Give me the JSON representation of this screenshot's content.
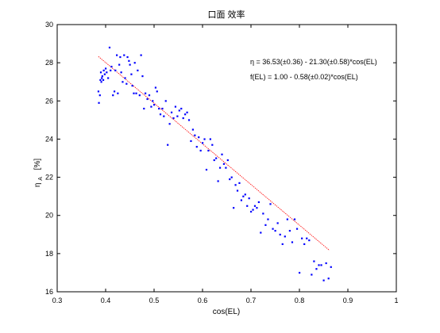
{
  "chart_data": {
    "type": "scatter",
    "title": "口面 效率",
    "xlabel": "cos(EL)",
    "ylabel": "η",
    "ylabel_subscript": "A",
    "ylabel_unit": "[%]",
    "xlim": [
      0.3,
      1.0
    ],
    "ylim": [
      16,
      30
    ],
    "xticks": [
      "0.3",
      "0.4",
      "0.5",
      "0.6",
      "0.7",
      "0.8",
      "0.9",
      "1"
    ],
    "yticks": [
      "16",
      "18",
      "20",
      "22",
      "24",
      "26",
      "28",
      "30"
    ],
    "grid": false,
    "annotations": [
      "η = 36.53(±0.36) - 21.30(±0.58)*cos(EL)",
      "f(EL) = 1.00 - 0.58(±0.02)*cos(EL)"
    ],
    "fit_line": {
      "x": [
        0.385,
        0.862
      ],
      "y": [
        28.33,
        18.17
      ]
    },
    "colors": {
      "points": "#0000ff",
      "fit": "#ff0000"
    },
    "series": [
      {
        "x": [
          0.385,
          0.386,
          0.388,
          0.389,
          0.39,
          0.391,
          0.392,
          0.393,
          0.395,
          0.396,
          0.398,
          0.4,
          0.402,
          0.405,
          0.408,
          0.41,
          0.412,
          0.415,
          0.418,
          0.42,
          0.423,
          0.425,
          0.428,
          0.43,
          0.432,
          0.435,
          0.438,
          0.44,
          0.443,
          0.445,
          0.448,
          0.45,
          0.453,
          0.455,
          0.458,
          0.46,
          0.463,
          0.466,
          0.47,
          0.473,
          0.476,
          0.479,
          0.482,
          0.486,
          0.49,
          0.494,
          0.497,
          0.5,
          0.503,
          0.506,
          0.51,
          0.513,
          0.517,
          0.52,
          0.524,
          0.528,
          0.532,
          0.536,
          0.54,
          0.544,
          0.548,
          0.552,
          0.556,
          0.56,
          0.564,
          0.568,
          0.572,
          0.576,
          0.58,
          0.584,
          0.588,
          0.592,
          0.596,
          0.6,
          0.604,
          0.608,
          0.612,
          0.616,
          0.62,
          0.624,
          0.628,
          0.632,
          0.636,
          0.64,
          0.644,
          0.648,
          0.652,
          0.656,
          0.66,
          0.664,
          0.668,
          0.672,
          0.676,
          0.68,
          0.684,
          0.688,
          0.692,
          0.696,
          0.7,
          0.704,
          0.708,
          0.712,
          0.716,
          0.72,
          0.725,
          0.73,
          0.735,
          0.74,
          0.745,
          0.75,
          0.755,
          0.76,
          0.765,
          0.77,
          0.775,
          0.78,
          0.785,
          0.79,
          0.795,
          0.8,
          0.805,
          0.81,
          0.815,
          0.82,
          0.825,
          0.83,
          0.835,
          0.84,
          0.845,
          0.85,
          0.855,
          0.86,
          0.865
        ],
        "y": [
          26.5,
          25.9,
          26.3,
          27.1,
          27.5,
          27.0,
          27.2,
          27.3,
          27.1,
          27.6,
          27.4,
          27.7,
          27.5,
          27.2,
          28.8,
          27.6,
          27.8,
          26.3,
          26.5,
          27.6,
          28.4,
          26.4,
          27.9,
          28.3,
          27.5,
          27.0,
          28.4,
          27.2,
          26.9,
          28.3,
          28.1,
          27.9,
          27.4,
          26.8,
          26.4,
          28.0,
          26.4,
          27.6,
          26.3,
          28.4,
          27.3,
          25.6,
          26.4,
          26.1,
          26.3,
          25.7,
          26.0,
          25.8,
          26.7,
          26.5,
          25.6,
          25.3,
          25.6,
          25.2,
          26.0,
          23.7,
          24.8,
          25.4,
          25.1,
          25.7,
          25.2,
          25.5,
          25.6,
          25.1,
          25.3,
          25.4,
          25.0,
          23.9,
          24.5,
          24.2,
          23.6,
          24.1,
          23.4,
          23.8,
          24.0,
          22.4,
          23.4,
          24.0,
          23.7,
          22.9,
          23.0,
          21.8,
          22.5,
          23.2,
          22.7,
          22.5,
          22.9,
          21.9,
          22.0,
          20.4,
          21.6,
          21.3,
          21.7,
          20.8,
          21.0,
          21.1,
          20.5,
          20.9,
          20.2,
          20.3,
          20.5,
          20.4,
          20.7,
          19.1,
          20.1,
          19.5,
          19.8,
          20.6,
          19.3,
          19.2,
          19.6,
          19.0,
          18.5,
          18.9,
          19.8,
          19.2,
          18.6,
          19.8,
          19.3,
          17.0,
          18.8,
          18.5,
          18.8,
          18.7,
          16.9,
          17.6,
          17.2,
          17.4,
          17.4,
          16.6,
          17.5,
          16.7,
          17.3
        ]
      }
    ]
  }
}
